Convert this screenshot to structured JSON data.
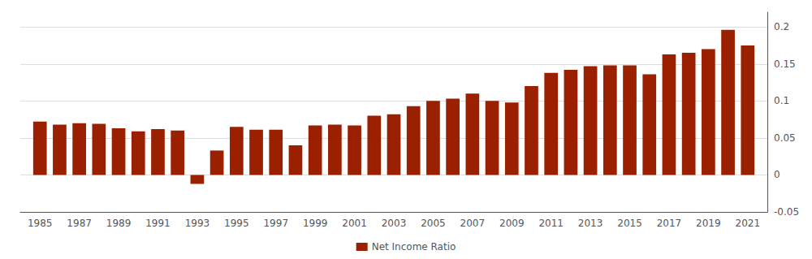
{
  "chart_data": {
    "type": "bar",
    "x": [
      1985,
      1986,
      1987,
      1988,
      1989,
      1990,
      1991,
      1992,
      1993,
      1994,
      1995,
      1996,
      1997,
      1998,
      1999,
      2000,
      2001,
      2002,
      2003,
      2004,
      2005,
      2006,
      2007,
      2008,
      2009,
      2010,
      2011,
      2012,
      2013,
      2014,
      2015,
      2016,
      2017,
      2018,
      2019,
      2020,
      2021
    ],
    "series": [
      {
        "name": "Net Income Ratio",
        "color": "#9b2000",
        "values": [
          0.072,
          0.068,
          0.07,
          0.069,
          0.063,
          0.059,
          0.062,
          0.06,
          -0.012,
          0.033,
          0.065,
          0.061,
          0.061,
          0.04,
          0.067,
          0.068,
          0.067,
          0.08,
          0.082,
          0.093,
          0.1,
          0.103,
          0.11,
          0.1,
          0.098,
          0.12,
          0.138,
          0.142,
          0.147,
          0.148,
          0.148,
          0.136,
          0.163,
          0.165,
          0.17,
          0.196,
          0.175
        ]
      }
    ],
    "xlim": [
      1984,
      2022
    ],
    "xticks": [
      1985,
      1987,
      1989,
      1991,
      1993,
      1995,
      1997,
      1999,
      2001,
      2003,
      2005,
      2007,
      2009,
      2011,
      2013,
      2015,
      2017,
      2019,
      2021
    ],
    "ylim": [
      -0.05,
      0.22
    ],
    "yticks": [
      -0.05,
      0,
      0.05,
      0.1,
      0.15,
      0.2
    ],
    "grid": true,
    "legend": "bottom"
  }
}
